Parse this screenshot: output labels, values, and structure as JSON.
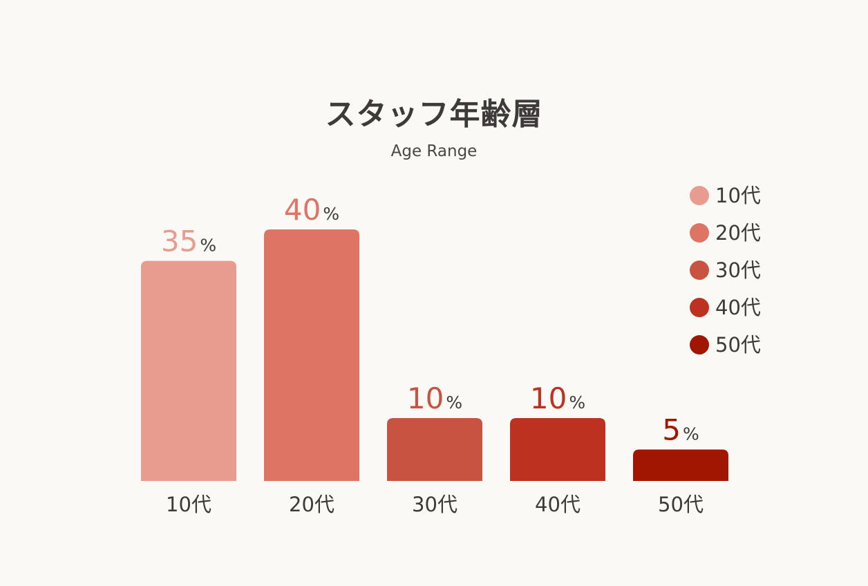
{
  "chart_data": {
    "type": "bar",
    "title": "スタッフ年齢層",
    "subtitle": "Age Range",
    "categories": [
      "10代",
      "20代",
      "30代",
      "40代",
      "50代"
    ],
    "values": [
      35,
      40,
      10,
      10,
      5
    ],
    "value_suffix": "%",
    "colors": [
      "#e89c90",
      "#de7464",
      "#c85340",
      "#bd3120",
      "#a01600"
    ],
    "ylim": [
      0,
      40
    ],
    "grid": false,
    "legend": {
      "position": "top-right",
      "entries": [
        "10代",
        "20代",
        "30代",
        "40代",
        "50代"
      ]
    }
  },
  "colors": {
    "background": "#fbf9f6",
    "text": "#3e3a39"
  }
}
